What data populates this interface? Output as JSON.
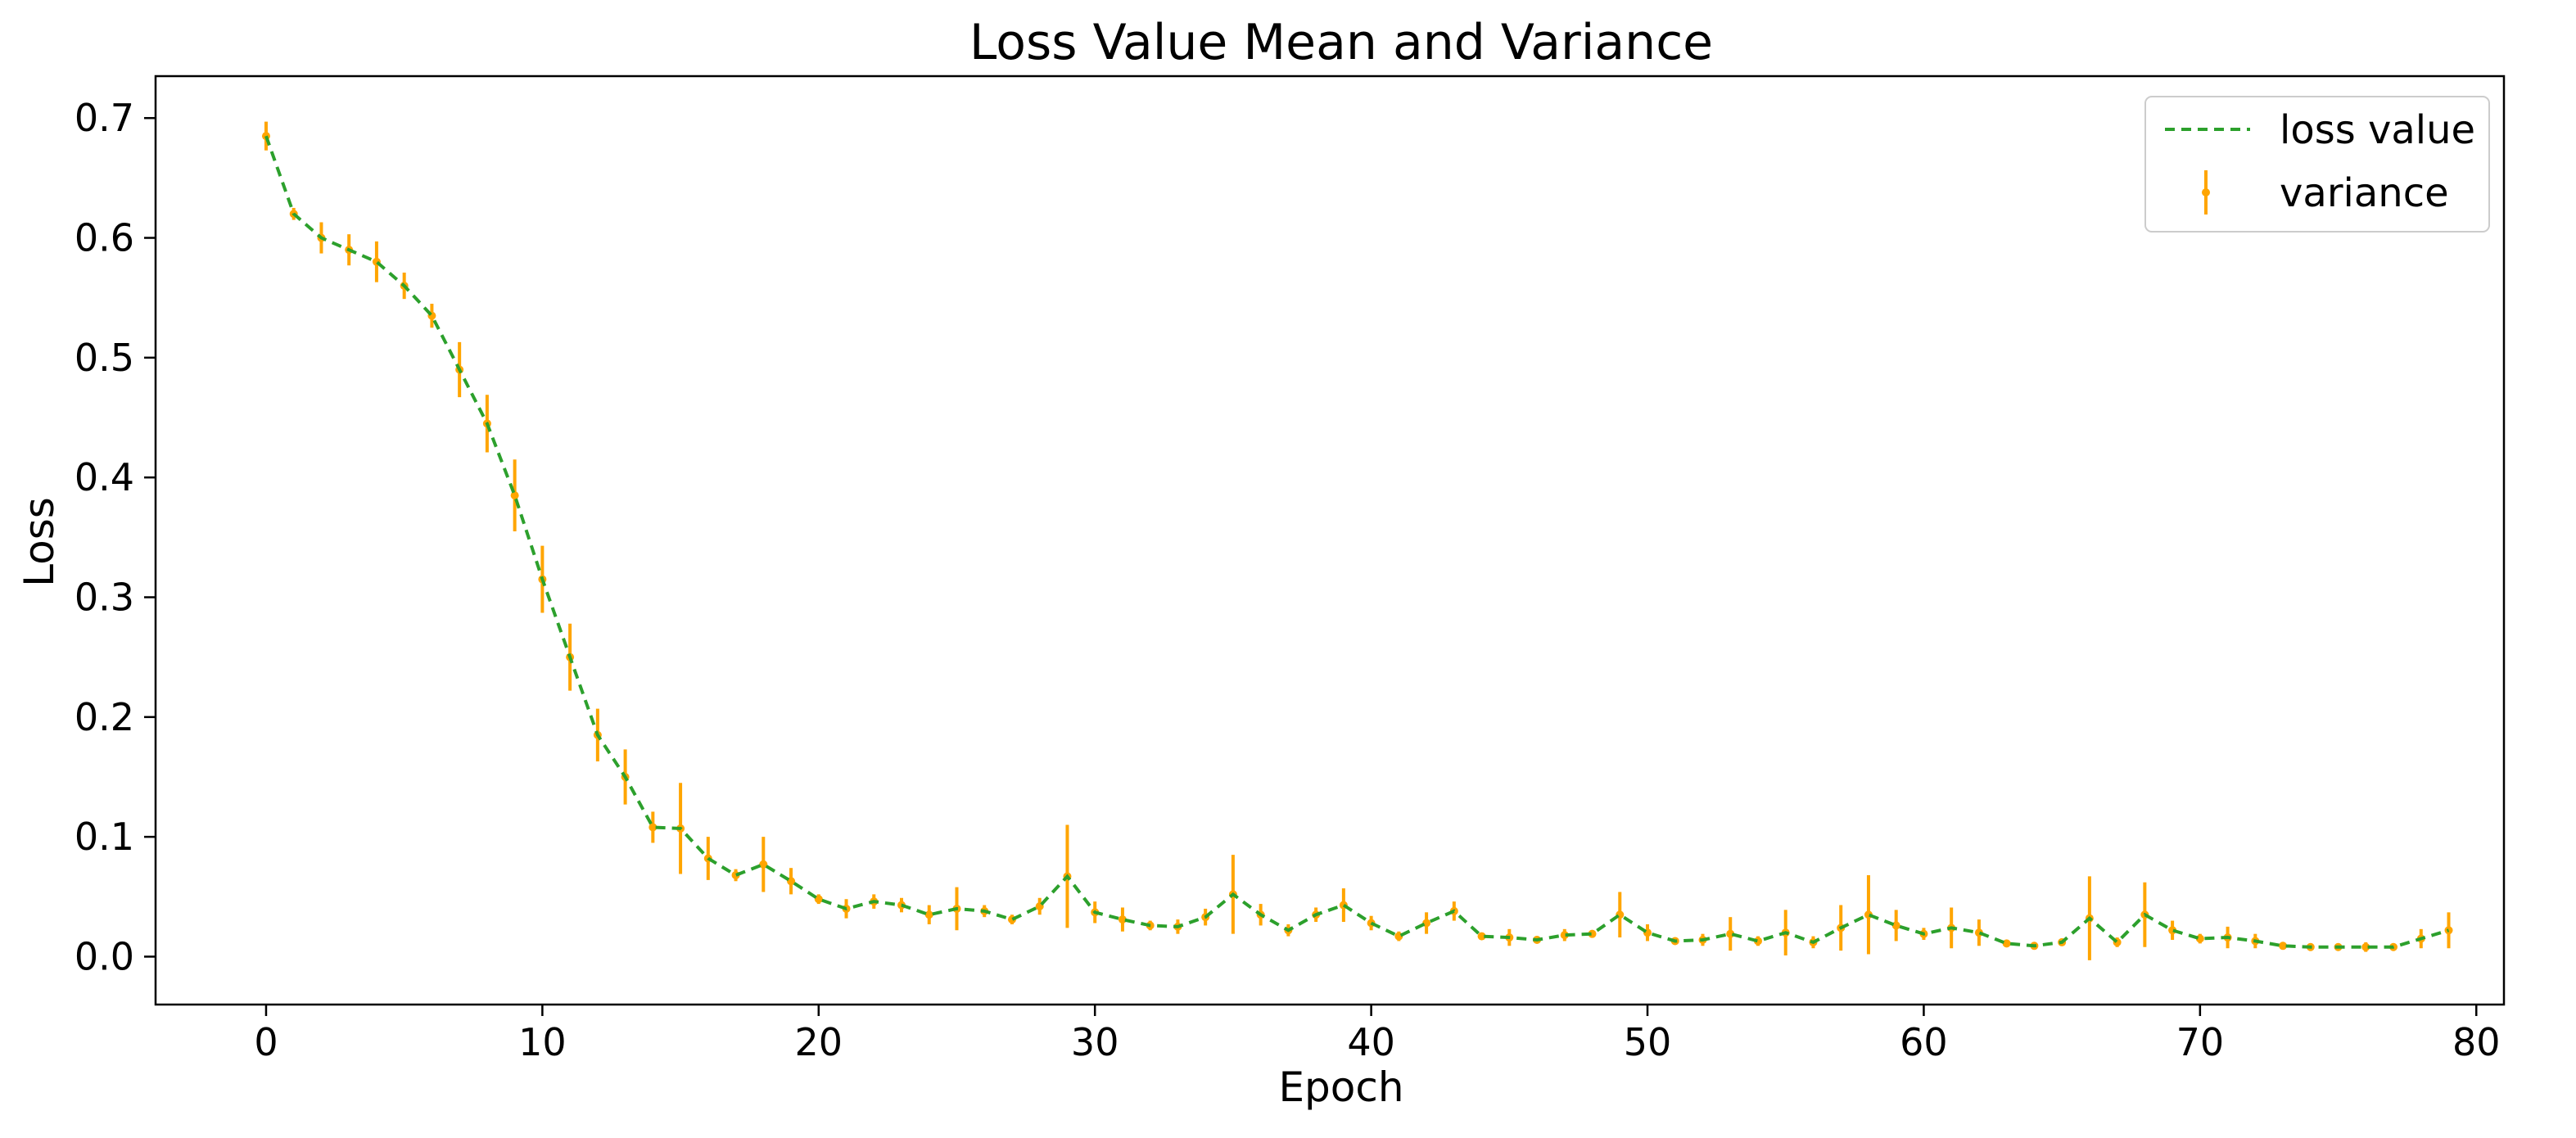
{
  "chart_data": {
    "type": "line",
    "title": "Loss Value Mean and Variance",
    "xlabel": "Epoch",
    "ylabel": "Loss",
    "xlim": [
      -4,
      81
    ],
    "ylim": [
      -0.04,
      0.735
    ],
    "xticks": [
      0,
      10,
      20,
      30,
      40,
      50,
      60,
      70,
      80
    ],
    "yticks": [
      0.0,
      0.1,
      0.2,
      0.3,
      0.4,
      0.5,
      0.6,
      0.7
    ],
    "grid": false,
    "legend_position": "top-right",
    "colors": {
      "line": "#2ca02c",
      "errorbar": "#ffa500"
    },
    "series": [
      {
        "name": "loss value",
        "style": "dashed",
        "x": [
          0,
          1,
          2,
          3,
          4,
          5,
          6,
          7,
          8,
          9,
          10,
          11,
          12,
          13,
          14,
          15,
          16,
          17,
          18,
          19,
          20,
          21,
          22,
          23,
          24,
          25,
          26,
          27,
          28,
          29,
          30,
          31,
          32,
          33,
          34,
          35,
          36,
          37,
          38,
          39,
          40,
          41,
          42,
          43,
          44,
          45,
          46,
          47,
          48,
          49,
          50,
          51,
          52,
          53,
          54,
          55,
          56,
          57,
          58,
          59,
          60,
          61,
          62,
          63,
          64,
          65,
          66,
          67,
          68,
          69,
          70,
          71,
          72,
          73,
          74,
          75,
          76,
          77,
          78,
          79
        ],
        "y": [
          0.685,
          0.62,
          0.6,
          0.59,
          0.58,
          0.56,
          0.535,
          0.49,
          0.445,
          0.385,
          0.315,
          0.25,
          0.185,
          0.15,
          0.108,
          0.107,
          0.082,
          0.068,
          0.077,
          0.063,
          0.048,
          0.04,
          0.046,
          0.043,
          0.035,
          0.04,
          0.038,
          0.031,
          0.042,
          0.067,
          0.037,
          0.031,
          0.026,
          0.025,
          0.033,
          0.052,
          0.035,
          0.022,
          0.035,
          0.043,
          0.028,
          0.017,
          0.028,
          0.038,
          0.017,
          0.016,
          0.014,
          0.018,
          0.019,
          0.035,
          0.02,
          0.013,
          0.014,
          0.019,
          0.013,
          0.02,
          0.012,
          0.024,
          0.035,
          0.026,
          0.019,
          0.024,
          0.02,
          0.011,
          0.009,
          0.012,
          0.032,
          0.012,
          0.035,
          0.022,
          0.015,
          0.016,
          0.013,
          0.009,
          0.008,
          0.008,
          0.008,
          0.008,
          0.015,
          0.022
        ]
      },
      {
        "name": "variance",
        "style": "errorbar",
        "x": [
          0,
          1,
          2,
          3,
          4,
          5,
          6,
          7,
          8,
          9,
          10,
          11,
          12,
          13,
          14,
          15,
          16,
          17,
          18,
          19,
          20,
          21,
          22,
          23,
          24,
          25,
          26,
          27,
          28,
          29,
          30,
          31,
          32,
          33,
          34,
          35,
          36,
          37,
          38,
          39,
          40,
          41,
          42,
          43,
          44,
          45,
          46,
          47,
          48,
          49,
          50,
          51,
          52,
          53,
          54,
          55,
          56,
          57,
          58,
          59,
          60,
          61,
          62,
          63,
          64,
          65,
          66,
          67,
          68,
          69,
          70,
          71,
          72,
          73,
          74,
          75,
          76,
          77,
          78,
          79
        ],
        "y": [
          0.685,
          0.62,
          0.6,
          0.59,
          0.58,
          0.56,
          0.535,
          0.49,
          0.445,
          0.385,
          0.315,
          0.25,
          0.185,
          0.15,
          0.108,
          0.107,
          0.082,
          0.068,
          0.077,
          0.063,
          0.048,
          0.04,
          0.046,
          0.043,
          0.035,
          0.04,
          0.038,
          0.031,
          0.042,
          0.067,
          0.037,
          0.031,
          0.026,
          0.025,
          0.033,
          0.052,
          0.035,
          0.022,
          0.035,
          0.043,
          0.028,
          0.017,
          0.028,
          0.038,
          0.017,
          0.016,
          0.014,
          0.018,
          0.019,
          0.035,
          0.02,
          0.013,
          0.014,
          0.019,
          0.013,
          0.02,
          0.012,
          0.024,
          0.035,
          0.026,
          0.019,
          0.024,
          0.02,
          0.011,
          0.009,
          0.012,
          0.032,
          0.012,
          0.035,
          0.022,
          0.015,
          0.016,
          0.013,
          0.009,
          0.008,
          0.008,
          0.008,
          0.008,
          0.015,
          0.022
        ],
        "err": [
          0.012,
          0.005,
          0.013,
          0.013,
          0.017,
          0.011,
          0.01,
          0.023,
          0.024,
          0.03,
          0.028,
          0.028,
          0.022,
          0.023,
          0.013,
          0.038,
          0.018,
          0.005,
          0.023,
          0.011,
          0.004,
          0.008,
          0.006,
          0.006,
          0.008,
          0.018,
          0.005,
          0.004,
          0.007,
          0.043,
          0.009,
          0.01,
          0.004,
          0.006,
          0.007,
          0.033,
          0.009,
          0.005,
          0.006,
          0.014,
          0.006,
          0.004,
          0.009,
          0.008,
          0.003,
          0.007,
          0.003,
          0.005,
          0.003,
          0.019,
          0.007,
          0.003,
          0.005,
          0.014,
          0.004,
          0.019,
          0.005,
          0.019,
          0.033,
          0.013,
          0.005,
          0.017,
          0.011,
          0.003,
          0.003,
          0.003,
          0.035,
          0.004,
          0.027,
          0.008,
          0.004,
          0.009,
          0.006,
          0.003,
          0.003,
          0.002,
          0.004,
          0.003,
          0.008,
          0.015
        ]
      }
    ]
  }
}
